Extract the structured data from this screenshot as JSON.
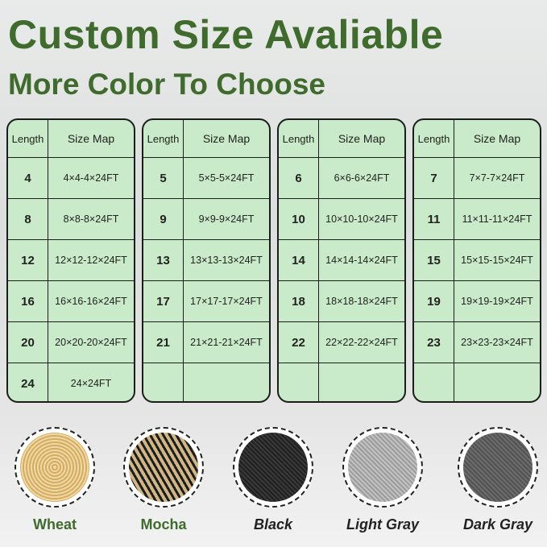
{
  "title": "Custom Size Avaliable",
  "subtitle": "More Color To Choose",
  "table_headers": {
    "length": "Length",
    "size_map": "Size Map"
  },
  "tables": [
    [
      {
        "l": "4",
        "s": "4×4-4×24FT"
      },
      {
        "l": "8",
        "s": "8×8-8×24FT"
      },
      {
        "l": "12",
        "s": "12×12-12×24FT"
      },
      {
        "l": "16",
        "s": "16×16-16×24FT"
      },
      {
        "l": "20",
        "s": "20×20-20×24FT"
      },
      {
        "l": "24",
        "s": "24×24FT"
      }
    ],
    [
      {
        "l": "5",
        "s": "5×5-5×24FT"
      },
      {
        "l": "9",
        "s": "9×9-9×24FT"
      },
      {
        "l": "13",
        "s": "13×13-13×24FT"
      },
      {
        "l": "17",
        "s": "17×17-17×24FT"
      },
      {
        "l": "21",
        "s": "21×21-21×24FT"
      },
      {
        "l": "",
        "s": ""
      }
    ],
    [
      {
        "l": "6",
        "s": "6×6-6×24FT"
      },
      {
        "l": "10",
        "s": "10×10-10×24FT"
      },
      {
        "l": "14",
        "s": "14×14-14×24FT"
      },
      {
        "l": "18",
        "s": "18×18-18×24FT"
      },
      {
        "l": "22",
        "s": "22×22-22×24FT"
      },
      {
        "l": "",
        "s": ""
      }
    ],
    [
      {
        "l": "7",
        "s": "7×7-7×24FT"
      },
      {
        "l": "11",
        "s": "11×11-11×24FT"
      },
      {
        "l": "15",
        "s": "15×15-15×24FT"
      },
      {
        "l": "19",
        "s": "19×19-19×24FT"
      },
      {
        "l": "23",
        "s": "23×23-23×24FT"
      },
      {
        "l": "",
        "s": ""
      }
    ]
  ],
  "colors": [
    {
      "name": "Wheat",
      "swatch": "#e2c283",
      "label_color": "#3f6b2c"
    },
    {
      "name": "Mocha",
      "swatch": "#b49a6a",
      "label_color": "#3f6b2c"
    },
    {
      "name": "Black",
      "swatch": "#2b2b2b",
      "label_color": "#222222"
    },
    {
      "name": "Light Gray",
      "swatch": "#a9a9a9",
      "label_color": "#222222"
    },
    {
      "name": "Dark Gray",
      "swatch": "#5e5e5e",
      "label_color": "#222222"
    }
  ]
}
